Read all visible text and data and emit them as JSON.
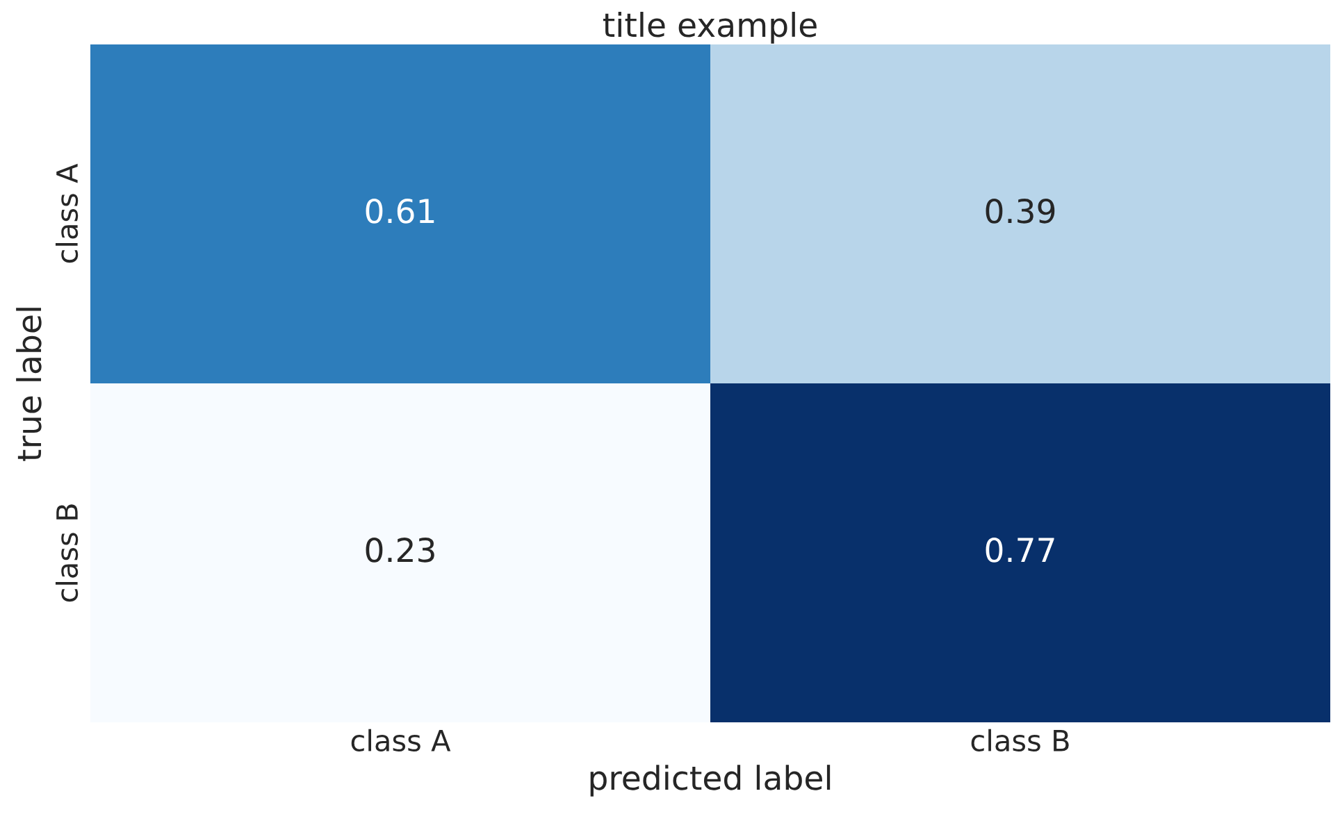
{
  "chart_data": {
    "type": "heatmap",
    "title": "title example",
    "xlabel": "predicted label",
    "ylabel": "true label",
    "categories": [
      "class A",
      "class B"
    ],
    "y_categories": [
      "class A",
      "class B"
    ],
    "cells": [
      [
        0.61,
        0.39
      ],
      [
        0.23,
        0.77
      ]
    ],
    "data_labels": true
  }
}
